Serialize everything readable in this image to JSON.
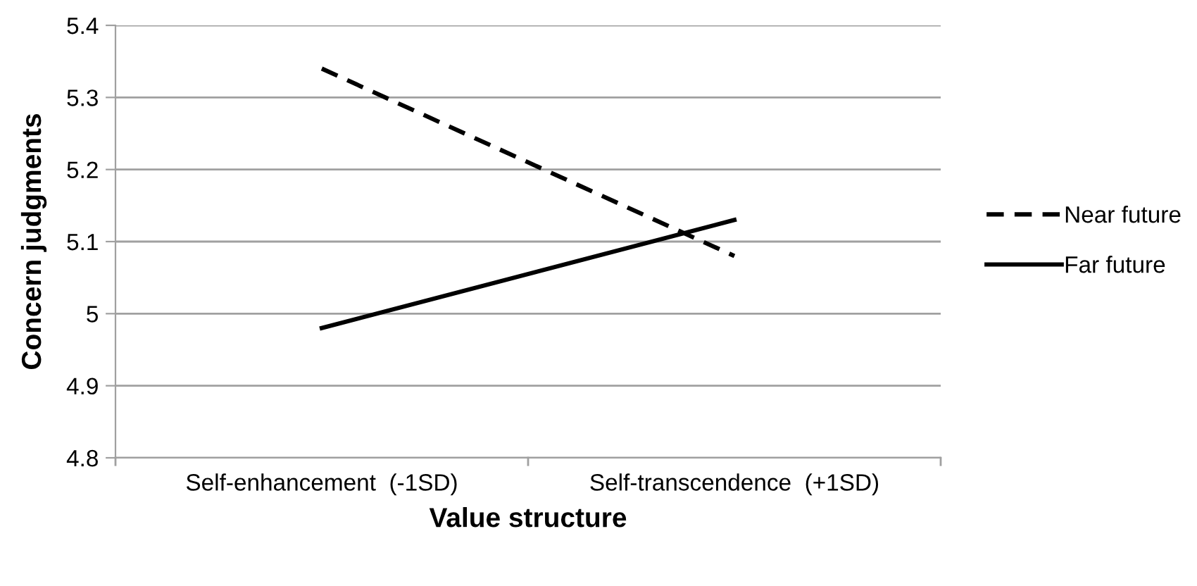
{
  "chart_data": {
    "type": "line",
    "xlabel": "Value structure",
    "ylabel": "Concern judgments",
    "categories": [
      "Self-enhancement  (-1SD)",
      "Self-transcendence  (+1SD)"
    ],
    "series": [
      {
        "name": "Near future",
        "color": "#000000",
        "line_style": "dashed",
        "values": [
          5.34,
          5.08
        ]
      },
      {
        "name": "Far future",
        "color": "#000000",
        "line_style": "solid",
        "values": [
          4.98,
          5.13
        ]
      }
    ],
    "ylim": [
      4.8,
      5.4
    ],
    "yticks": [
      4.8,
      4.9,
      5,
      5.1,
      5.2,
      5.3,
      5.4
    ],
    "grid": "y",
    "legend": "right",
    "marker": "none"
  }
}
